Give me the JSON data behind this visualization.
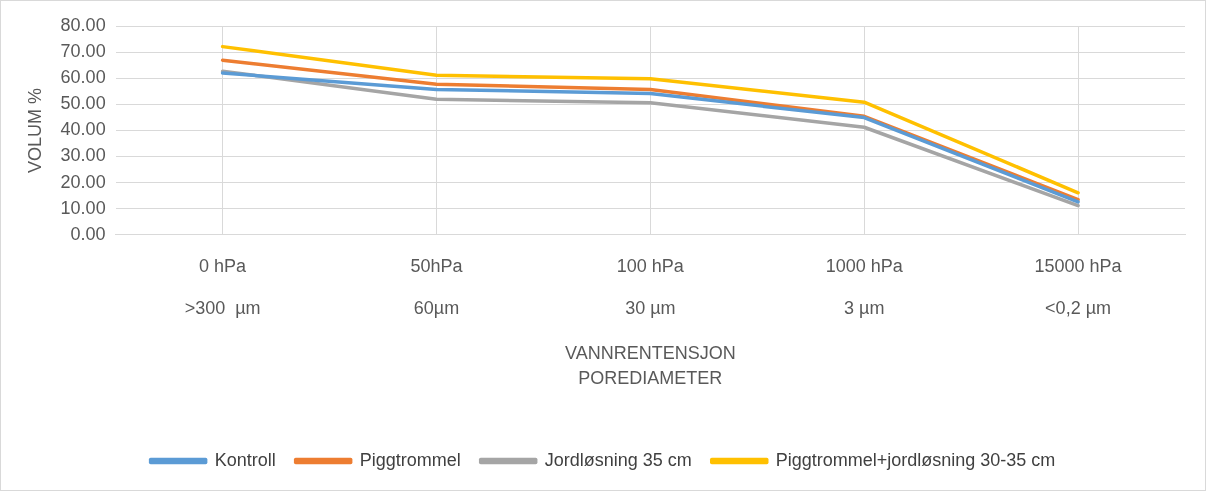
{
  "chart_data": {
    "type": "line",
    "ylabel": "VOLUM %",
    "xlabel": "VANNRENTENSJON\nPOREDIAMETER",
    "categories": [
      "0 hPa\n>300  µm",
      "50hPa\n60µm",
      "100 hPa\n30 µm",
      "1000 hPa\n3 µm",
      "15000 hPa\n<0,2 µm"
    ],
    "series": [
      {
        "name": "Kontroll",
        "color": "#5b9bd5",
        "values": [
          62.0,
          55.7,
          54.1,
          44.9,
          12.6
        ]
      },
      {
        "name": "Piggtrommel",
        "color": "#ed7d31",
        "values": [
          66.9,
          57.7,
          55.7,
          45.4,
          13.5
        ]
      },
      {
        "name": "Jordløsning 35 cm",
        "color": "#a5a5a5",
        "values": [
          62.7,
          51.9,
          50.6,
          41.2,
          11.2
        ]
      },
      {
        "name": "Piggtrommel+jordløsning 30-35 cm",
        "color": "#ffc000",
        "values": [
          72.1,
          61.1,
          59.8,
          50.8,
          16.1
        ]
      }
    ],
    "ylim": [
      0,
      80
    ],
    "yticks": [
      {
        "value": 0,
        "label": "0.00"
      },
      {
        "value": 10,
        "label": "10.00"
      },
      {
        "value": 20,
        "label": "20.00"
      },
      {
        "value": 30,
        "label": "30.00"
      },
      {
        "value": 40,
        "label": "40.00"
      },
      {
        "value": 50,
        "label": "50.00"
      },
      {
        "value": 60,
        "label": "60.00"
      },
      {
        "value": 70,
        "label": "70.00"
      },
      {
        "value": 80,
        "label": "80.00"
      }
    ],
    "grid": true,
    "legend": "bottom",
    "marker": "none",
    "line_style": "solid"
  }
}
